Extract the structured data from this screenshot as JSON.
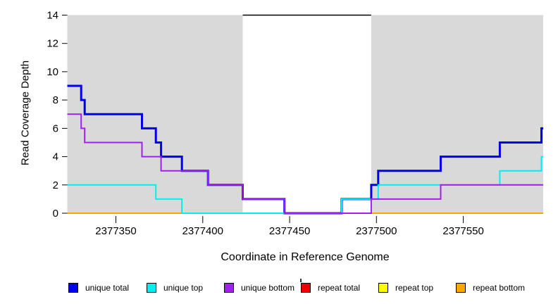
{
  "chart_data": {
    "type": "line",
    "subtype": "step",
    "title": "",
    "xlabel": "Coordinate in Reference Genome",
    "ylabel": "Read Coverage Depth",
    "xlim": [
      2377322,
      2377596
    ],
    "ylim": [
      0,
      14
    ],
    "x_ticks": [
      2377350,
      2377400,
      2377450,
      2377500,
      2377550
    ],
    "y_ticks": [
      0,
      2,
      4,
      6,
      8,
      10,
      12,
      14
    ],
    "grid": false,
    "legend_position": "bottom",
    "shaded_region_color": "#D9D9D9",
    "shaded_regions": [
      {
        "start": 2377322,
        "end": 2377423
      },
      {
        "start": 2377497,
        "end": 2377596
      }
    ],
    "repeat_region_marker": {
      "start": 2377423,
      "end": 2377497,
      "depth": 14,
      "color": "#000000"
    },
    "draw_order": [
      "repeat total",
      "repeat top",
      "repeat bottom",
      "unique total",
      "unique top",
      "unique bottom"
    ],
    "x_end": 2377596,
    "series": [
      {
        "name": "unique total",
        "color": "#0000EE",
        "width": 3,
        "steps": [
          [
            2377322,
            9
          ],
          [
            2377330,
            8
          ],
          [
            2377332,
            7
          ],
          [
            2377365,
            6
          ],
          [
            2377373,
            5
          ],
          [
            2377376,
            4
          ],
          [
            2377388,
            3
          ],
          [
            2377403,
            2
          ],
          [
            2377423,
            1
          ],
          [
            2377447,
            0
          ],
          [
            2377480,
            1
          ],
          [
            2377497,
            2
          ],
          [
            2377501,
            3
          ],
          [
            2377537,
            4
          ],
          [
            2377571,
            5
          ],
          [
            2377595,
            6
          ]
        ]
      },
      {
        "name": "unique top",
        "color": "#00EEEE",
        "width": 2,
        "steps": [
          [
            2377322,
            2
          ],
          [
            2377373,
            1
          ],
          [
            2377388,
            0
          ],
          [
            2377480,
            1
          ],
          [
            2377501,
            2
          ],
          [
            2377571,
            3
          ],
          [
            2377595,
            4
          ]
        ]
      },
      {
        "name": "unique bottom",
        "color": "#A020F0",
        "width": 2,
        "steps": [
          [
            2377322,
            7
          ],
          [
            2377330,
            6
          ],
          [
            2377332,
            5
          ],
          [
            2377365,
            4
          ],
          [
            2377376,
            3
          ],
          [
            2377403,
            2
          ],
          [
            2377423,
            1
          ],
          [
            2377447,
            0
          ],
          [
            2377497,
            1
          ],
          [
            2377537,
            2
          ]
        ]
      },
      {
        "name": "repeat total",
        "color": "#EE0000",
        "width": 2,
        "steps": [
          [
            2377322,
            0
          ]
        ]
      },
      {
        "name": "repeat top",
        "color": "#FFFF00",
        "width": 2,
        "steps": [
          [
            2377322,
            0
          ]
        ]
      },
      {
        "name": "repeat bottom",
        "color": "#FFA500",
        "width": 2,
        "steps": [
          [
            2377322,
            0
          ]
        ]
      }
    ]
  }
}
